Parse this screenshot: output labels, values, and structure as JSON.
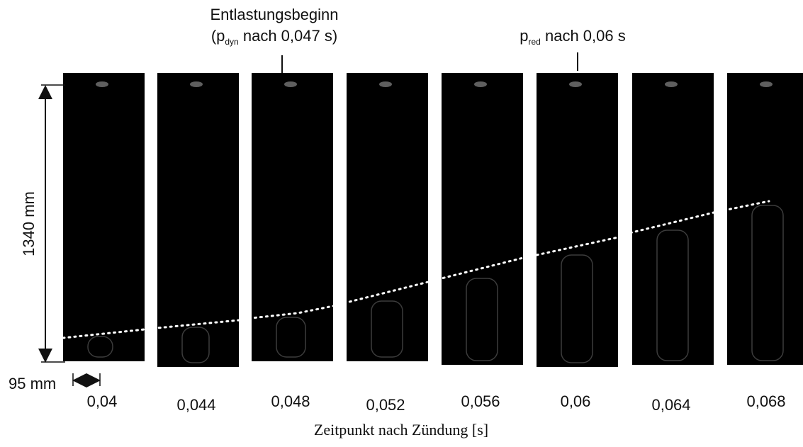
{
  "annotations": {
    "relief_start": {
      "line1": "Entlastungsbeginn",
      "prefix": "(p",
      "subscript": "dyn",
      "suffix": " nach 0,047 s)"
    },
    "p_red": {
      "prefix": "p",
      "subscript": "red",
      "suffix": " nach 0,06 s"
    }
  },
  "dimensions": {
    "height": "1340 mm",
    "width": "95 mm"
  },
  "frames": [
    {
      "time": "0,04"
    },
    {
      "time": "0,044"
    },
    {
      "time": "0,048"
    },
    {
      "time": "0,052"
    },
    {
      "time": "0,056"
    },
    {
      "time": "0,06"
    },
    {
      "time": "0,064"
    },
    {
      "time": "0,068"
    }
  ],
  "x_label": "Zeitpunkt nach Zündung [s]"
}
